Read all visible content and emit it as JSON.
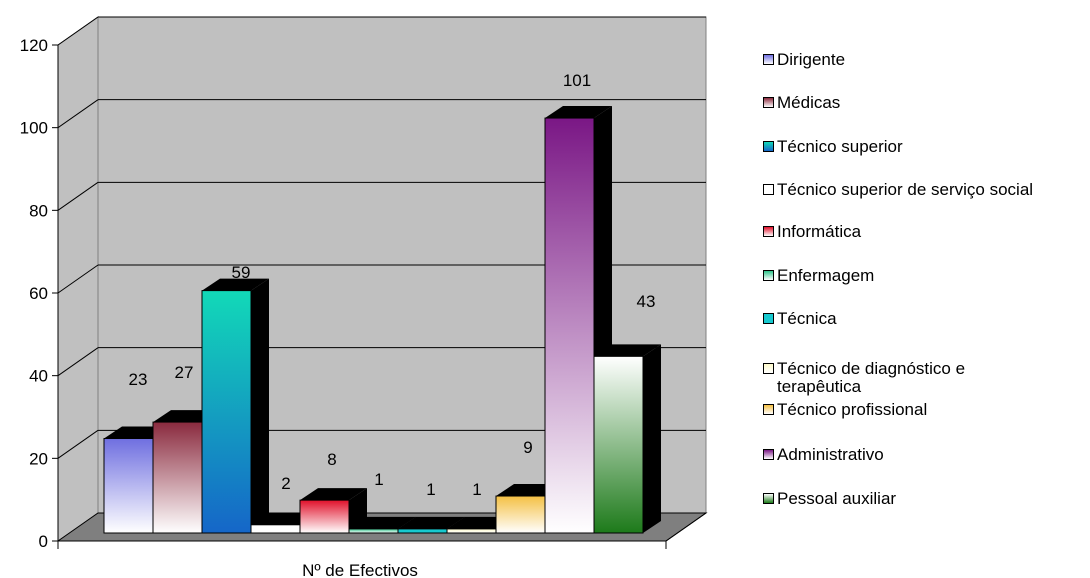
{
  "chart_data": {
    "type": "bar",
    "xlabel": "Nº de Efectivos",
    "ylabel": "",
    "title": "",
    "ylim": [
      0,
      120
    ],
    "yticks": [
      0,
      20,
      40,
      60,
      80,
      100,
      120
    ],
    "grid": true,
    "legend_position": "right",
    "series": [
      {
        "name": "Dirigente",
        "value": 23,
        "label": "23",
        "colors": [
          "#6f6fe0",
          "#ffffff"
        ]
      },
      {
        "name": "Médicas",
        "value": 27,
        "label": "27",
        "colors": [
          "#8a2a3e",
          "#ffffff"
        ]
      },
      {
        "name": "Técnico superior",
        "value": 59,
        "label": "59",
        "colors": [
          "#12d9b8",
          "#1566c8"
        ]
      },
      {
        "name": "Técnico superior de serviço social",
        "value": 2,
        "label": "2",
        "colors": [
          "#ffffff",
          "#ffffff"
        ]
      },
      {
        "name": "Informática",
        "value": 8,
        "label": "8",
        "colors": [
          "#e0102a",
          "#ffffff"
        ]
      },
      {
        "name": "Enfermagem",
        "value": 1,
        "label": "1",
        "colors": [
          "#2fc48a",
          "#ffffff"
        ]
      },
      {
        "name": "Técnica",
        "value": 1,
        "label": "1",
        "colors": [
          "#17c9cf",
          "#17c9cf"
        ]
      },
      {
        "name": "Técnico de diagnóstico e terapêutica",
        "value": 1,
        "label": "1",
        "colors": [
          "#fffbcc",
          "#ffffff"
        ]
      },
      {
        "name": "Técnico profissional",
        "value": 9,
        "label": "9",
        "colors": [
          "#f4c043",
          "#ffffff"
        ]
      },
      {
        "name": "Administrativo",
        "value": 101,
        "label": "101",
        "colors": [
          "#7a1785",
          "#ffffff"
        ]
      },
      {
        "name": "Pessoal auxiliar",
        "value": 43,
        "label": "43",
        "colors": [
          "#ffffff",
          "#1d7a1a"
        ]
      }
    ]
  }
}
